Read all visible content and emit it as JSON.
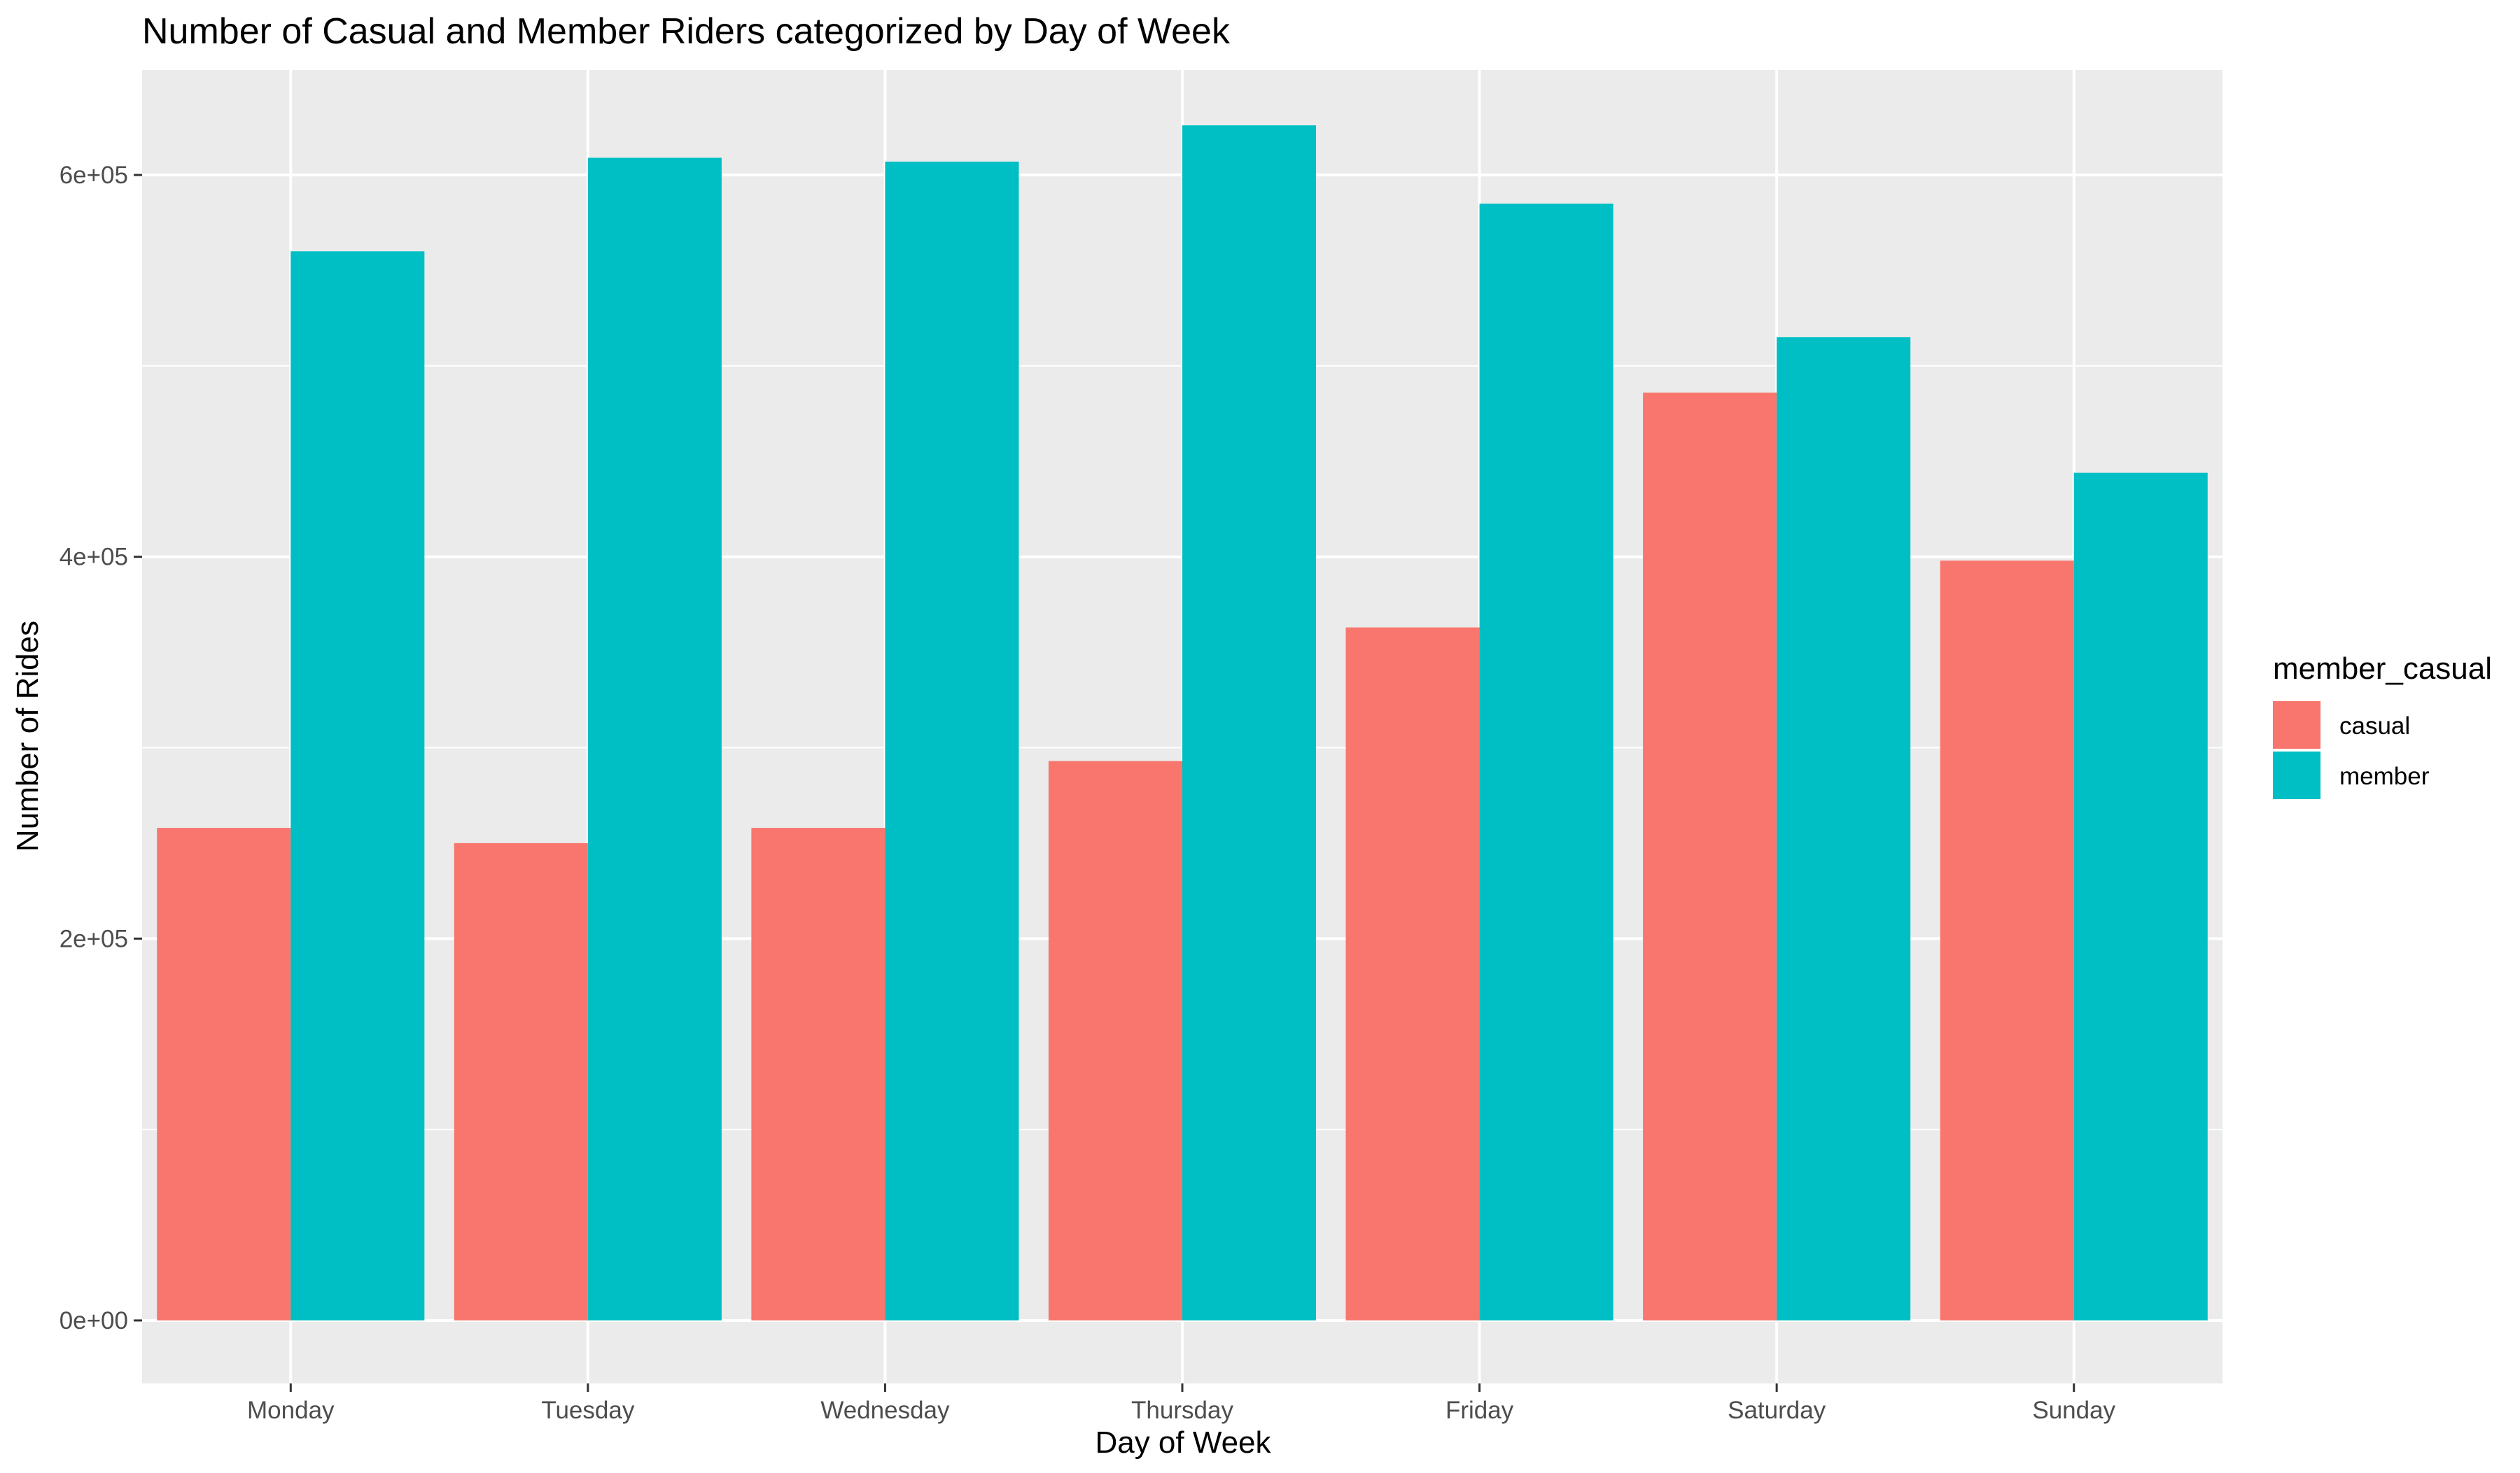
{
  "chart_data": {
    "type": "bar",
    "title": "Number of Casual and Member Riders categorized by Day of Week",
    "xlabel": "Day of Week",
    "ylabel": "Number of Rides",
    "categories": [
      "Monday",
      "Tuesday",
      "Wednesday",
      "Thursday",
      "Friday",
      "Saturday",
      "Sunday"
    ],
    "series": [
      {
        "name": "casual",
        "color": "#F8766D",
        "values": [
          258000,
          250000,
          258000,
          293000,
          363000,
          486000,
          398000
        ]
      },
      {
        "name": "member",
        "color": "#00BFC4",
        "values": [
          560000,
          609000,
          607000,
          626000,
          585000,
          515000,
          444000
        ]
      }
    ],
    "ylim": [
      -33000,
      655000
    ],
    "yticks": [
      0,
      200000,
      400000,
      600000
    ],
    "ytick_labels": [
      "0e+00",
      "2e+05",
      "4e+05",
      "6e+05"
    ],
    "legend": {
      "title": "member_casual",
      "position": "right"
    },
    "grid": true,
    "panel_background": "#EBEBEB",
    "grid_color": "#FFFFFF"
  }
}
